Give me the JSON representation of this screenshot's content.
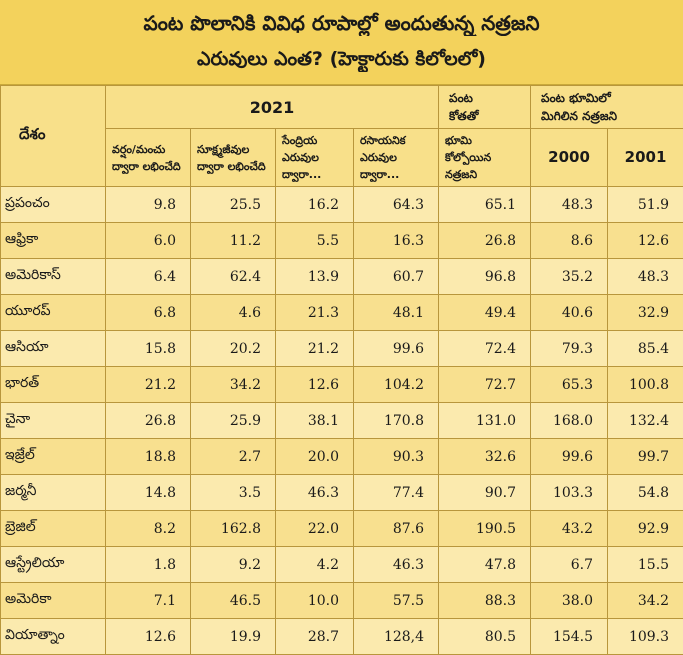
{
  "title": {
    "line1": "పంట పొలానికి వివిధ రూపాల్లో అందుతున్న నత్రజని",
    "line2": "ఎరువులు ఎంత? (హెక్టారుకు కిలోలలో)"
  },
  "header": {
    "country": "దేశం",
    "year_2021": "2021",
    "harvest": "పంట\nకోతతో",
    "remaining": "పంట భూమిలో\nమిగిలిన నత్రజని",
    "sub": [
      "వర్షం/మంచు\nద్వారా లభించేది",
      "సూక్ష్మజీవుల\nద్వారా లభించేది",
      "సేంద్రియ\nఎరువుల\nద్వారా...",
      "రసాయనిక\nఎరువుల\nద్వారా...",
      "భూమి\nకోల్పోయిన\nనత్రజని",
      "2000",
      "2001"
    ]
  },
  "rows": [
    {
      "country": "ప్రపంచం",
      "v": [
        "9.8",
        "25.5",
        "16.2",
        "64.3",
        "65.1",
        "48.3",
        "51.9"
      ]
    },
    {
      "country": "ఆఫ్రికా",
      "v": [
        "6.0",
        "11.2",
        "5.5",
        "16.3",
        "26.8",
        "8.6",
        "12.6"
      ]
    },
    {
      "country": "అమెరికాస్",
      "v": [
        "6.4",
        "62.4",
        "13.9",
        "60.7",
        "96.8",
        "35.2",
        "48.3"
      ]
    },
    {
      "country": "యూరప్",
      "v": [
        "6.8",
        "4.6",
        "21.3",
        "48.1",
        "49.4",
        "40.6",
        "32.9"
      ]
    },
    {
      "country": "ఆసియా",
      "v": [
        "15.8",
        "20.2",
        "21.2",
        "99.6",
        "72.4",
        "79.3",
        "85.4"
      ]
    },
    {
      "country": "భారత్",
      "v": [
        "21.2",
        "34.2",
        "12.6",
        "104.2",
        "72.7",
        "65.3",
        "100.8"
      ]
    },
    {
      "country": "చైనా",
      "v": [
        "26.8",
        "25.9",
        "38.1",
        "170.8",
        "131.0",
        "168.0",
        "132.4"
      ]
    },
    {
      "country": "ఇజ్రేల్",
      "v": [
        "18.8",
        "2.7",
        "20.0",
        "90.3",
        "32.6",
        "99.6",
        "99.7"
      ]
    },
    {
      "country": "జర్మనీ",
      "v": [
        "14.8",
        "3.5",
        "46.3",
        "77.4",
        "90.7",
        "103.3",
        "54.8"
      ]
    },
    {
      "country": "బ్రెజిల్",
      "v": [
        "8.2",
        "162.8",
        "22.0",
        "87.6",
        "190.5",
        "43.2",
        "92.9"
      ]
    },
    {
      "country": "ఆస్ట్రేలియా",
      "v": [
        "1.8",
        "9.2",
        "4.2",
        "46.3",
        "47.8",
        "6.7",
        "15.5"
      ]
    },
    {
      "country": "అమెరికా",
      "v": [
        "7.1",
        "46.5",
        "10.0",
        "57.5",
        "88.3",
        "38.0",
        "34.2"
      ]
    },
    {
      "country": "వియాత్నాం",
      "v": [
        "12.6",
        "19.9",
        "28.7",
        "128,4",
        "80.5",
        "154.5",
        "109.3"
      ]
    }
  ]
}
